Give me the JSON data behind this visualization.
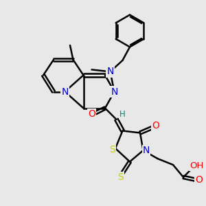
{
  "bg_color": "#e8e8e8",
  "bond_color": "#000000",
  "bond_width": 1.8,
  "atom_colors": {
    "C": "#000000",
    "N": "#0000cc",
    "O": "#ff0000",
    "S": "#cccc00",
    "H": "#008080"
  },
  "font_size": 8.5,
  "fig_size": [
    3.0,
    3.0
  ],
  "dpi": 100
}
